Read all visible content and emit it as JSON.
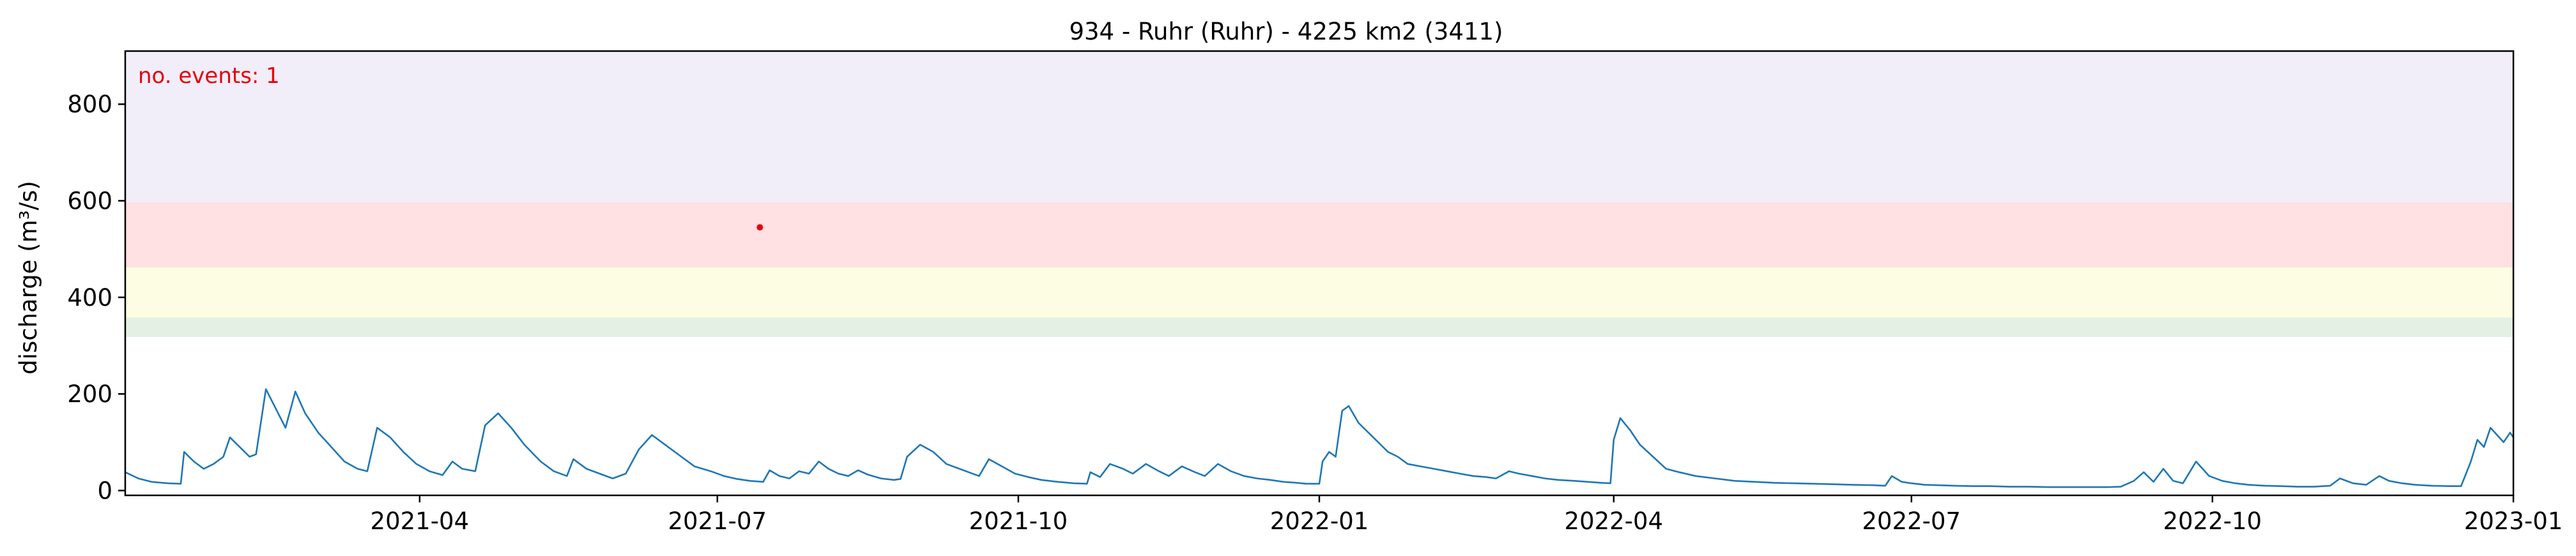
{
  "chart_data": {
    "type": "line",
    "title": "934 - Ruhr (Ruhr) - 4225 km2 (3411)",
    "xlabel": "",
    "ylabel": "discharge (m³/s)",
    "x_range": [
      "2021-01-01",
      "2023-01-01"
    ],
    "ylim": [
      -10,
      910
    ],
    "y_ticks": [
      0,
      200,
      400,
      600,
      800
    ],
    "x_ticks": [
      {
        "date": "2021-04-01",
        "label": "2021-04"
      },
      {
        "date": "2021-07-01",
        "label": "2021-07"
      },
      {
        "date": "2021-10-01",
        "label": "2021-10"
      },
      {
        "date": "2022-01-01",
        "label": "2022-01"
      },
      {
        "date": "2022-04-01",
        "label": "2022-04"
      },
      {
        "date": "2022-07-01",
        "label": "2022-07"
      },
      {
        "date": "2022-10-01",
        "label": "2022-10"
      },
      {
        "date": "2023-01-01",
        "label": "2023-01"
      }
    ],
    "grid": false,
    "threshold_bands": [
      {
        "from": 318,
        "to": 358,
        "color": "#e3f0e3"
      },
      {
        "from": 358,
        "to": 462,
        "color": "#fdfde3"
      },
      {
        "from": 462,
        "to": 597,
        "color": "#ffe0e3"
      },
      {
        "from": 597,
        "to": 910,
        "color": "#f1eef9"
      }
    ],
    "annotation": {
      "text": "no. events: 1",
      "color": "#e8000b",
      "position": "top-left"
    },
    "events": [
      {
        "date": "2021-07-14",
        "value": 545,
        "color": "#e8000b"
      }
    ],
    "series": [
      {
        "color": "#1f77b4",
        "points": [
          [
            "2021-01-01",
            38
          ],
          [
            "2021-01-05",
            25
          ],
          [
            "2021-01-09",
            18
          ],
          [
            "2021-01-14",
            15
          ],
          [
            "2021-01-18",
            14
          ],
          [
            "2021-01-19",
            80
          ],
          [
            "2021-01-22",
            60
          ],
          [
            "2021-01-25",
            45
          ],
          [
            "2021-01-28",
            55
          ],
          [
            "2021-01-31",
            70
          ],
          [
            "2021-02-02",
            110
          ],
          [
            "2021-02-05",
            90
          ],
          [
            "2021-02-08",
            70
          ],
          [
            "2021-02-10",
            75
          ],
          [
            "2021-02-13",
            210
          ],
          [
            "2021-02-16",
            170
          ],
          [
            "2021-02-19",
            130
          ],
          [
            "2021-02-22",
            205
          ],
          [
            "2021-02-25",
            160
          ],
          [
            "2021-03-01",
            120
          ],
          [
            "2021-03-05",
            90
          ],
          [
            "2021-03-09",
            60
          ],
          [
            "2021-03-13",
            45
          ],
          [
            "2021-03-16",
            40
          ],
          [
            "2021-03-19",
            130
          ],
          [
            "2021-03-23",
            110
          ],
          [
            "2021-03-27",
            80
          ],
          [
            "2021-03-31",
            55
          ],
          [
            "2021-04-04",
            40
          ],
          [
            "2021-04-08",
            32
          ],
          [
            "2021-04-11",
            60
          ],
          [
            "2021-04-14",
            45
          ],
          [
            "2021-04-18",
            40
          ],
          [
            "2021-04-21",
            135
          ],
          [
            "2021-04-25",
            160
          ],
          [
            "2021-04-29",
            130
          ],
          [
            "2021-05-03",
            95
          ],
          [
            "2021-05-08",
            60
          ],
          [
            "2021-05-12",
            40
          ],
          [
            "2021-05-16",
            30
          ],
          [
            "2021-05-18",
            65
          ],
          [
            "2021-05-22",
            45
          ],
          [
            "2021-05-26",
            35
          ],
          [
            "2021-05-30",
            25
          ],
          [
            "2021-06-03",
            35
          ],
          [
            "2021-06-07",
            85
          ],
          [
            "2021-06-11",
            115
          ],
          [
            "2021-06-15",
            95
          ],
          [
            "2021-06-20",
            70
          ],
          [
            "2021-06-24",
            50
          ],
          [
            "2021-06-29",
            40
          ],
          [
            "2021-07-03",
            30
          ],
          [
            "2021-07-07",
            24
          ],
          [
            "2021-07-11",
            20
          ],
          [
            "2021-07-15",
            18
          ],
          [
            "2021-07-17",
            42
          ],
          [
            "2021-07-20",
            30
          ],
          [
            "2021-07-23",
            25
          ],
          [
            "2021-07-26",
            40
          ],
          [
            "2021-07-29",
            35
          ],
          [
            "2021-08-01",
            60
          ],
          [
            "2021-08-04",
            45
          ],
          [
            "2021-08-07",
            35
          ],
          [
            "2021-08-10",
            30
          ],
          [
            "2021-08-13",
            42
          ],
          [
            "2021-08-16",
            33
          ],
          [
            "2021-08-20",
            25
          ],
          [
            "2021-08-24",
            22
          ],
          [
            "2021-08-26",
            24
          ],
          [
            "2021-08-28",
            70
          ],
          [
            "2021-09-01",
            95
          ],
          [
            "2021-09-05",
            80
          ],
          [
            "2021-09-09",
            55
          ],
          [
            "2021-09-13",
            45
          ],
          [
            "2021-09-15",
            40
          ],
          [
            "2021-09-19",
            30
          ],
          [
            "2021-09-22",
            65
          ],
          [
            "2021-09-26",
            50
          ],
          [
            "2021-09-30",
            35
          ],
          [
            "2021-10-04",
            28
          ],
          [
            "2021-10-08",
            22
          ],
          [
            "2021-10-13",
            18
          ],
          [
            "2021-10-18",
            15
          ],
          [
            "2021-10-22",
            14
          ],
          [
            "2021-10-23",
            38
          ],
          [
            "2021-10-26",
            28
          ],
          [
            "2021-10-29",
            55
          ],
          [
            "2021-11-02",
            45
          ],
          [
            "2021-11-05",
            35
          ],
          [
            "2021-11-09",
            55
          ],
          [
            "2021-11-13",
            40
          ],
          [
            "2021-11-16",
            30
          ],
          [
            "2021-11-20",
            50
          ],
          [
            "2021-11-24",
            38
          ],
          [
            "2021-11-27",
            30
          ],
          [
            "2021-12-01",
            55
          ],
          [
            "2021-12-05",
            40
          ],
          [
            "2021-12-09",
            30
          ],
          [
            "2021-12-13",
            25
          ],
          [
            "2021-12-17",
            22
          ],
          [
            "2021-12-21",
            18
          ],
          [
            "2021-12-25",
            16
          ],
          [
            "2021-12-28",
            14
          ],
          [
            "2022-01-01",
            14
          ],
          [
            "2022-01-02",
            60
          ],
          [
            "2022-01-04",
            80
          ],
          [
            "2022-01-06",
            70
          ],
          [
            "2022-01-08",
            165
          ],
          [
            "2022-01-10",
            175
          ],
          [
            "2022-01-13",
            140
          ],
          [
            "2022-01-16",
            120
          ],
          [
            "2022-01-19",
            100
          ],
          [
            "2022-01-22",
            80
          ],
          [
            "2022-01-25",
            70
          ],
          [
            "2022-01-28",
            55
          ],
          [
            "2022-02-01",
            50
          ],
          [
            "2022-02-05",
            45
          ],
          [
            "2022-02-09",
            40
          ],
          [
            "2022-02-13",
            35
          ],
          [
            "2022-02-17",
            30
          ],
          [
            "2022-02-21",
            28
          ],
          [
            "2022-02-24",
            25
          ],
          [
            "2022-02-28",
            40
          ],
          [
            "2022-03-03",
            35
          ],
          [
            "2022-03-07",
            30
          ],
          [
            "2022-03-11",
            25
          ],
          [
            "2022-03-15",
            22
          ],
          [
            "2022-03-20",
            20
          ],
          [
            "2022-03-24",
            18
          ],
          [
            "2022-03-28",
            16
          ],
          [
            "2022-03-31",
            15
          ],
          [
            "2022-04-01",
            105
          ],
          [
            "2022-04-03",
            150
          ],
          [
            "2022-04-06",
            125
          ],
          [
            "2022-04-09",
            95
          ],
          [
            "2022-04-13",
            70
          ],
          [
            "2022-04-17",
            45
          ],
          [
            "2022-04-21",
            38
          ],
          [
            "2022-04-26",
            30
          ],
          [
            "2022-05-02",
            25
          ],
          [
            "2022-05-08",
            20
          ],
          [
            "2022-05-14",
            18
          ],
          [
            "2022-05-20",
            16
          ],
          [
            "2022-05-26",
            15
          ],
          [
            "2022-06-01",
            14
          ],
          [
            "2022-06-07",
            13
          ],
          [
            "2022-06-13",
            12
          ],
          [
            "2022-06-19",
            11
          ],
          [
            "2022-06-23",
            10
          ],
          [
            "2022-06-25",
            30
          ],
          [
            "2022-06-28",
            18
          ],
          [
            "2022-07-01",
            15
          ],
          [
            "2022-07-05",
            12
          ],
          [
            "2022-07-09",
            11
          ],
          [
            "2022-07-14",
            10
          ],
          [
            "2022-07-20",
            9
          ],
          [
            "2022-07-25",
            9
          ],
          [
            "2022-07-31",
            8
          ],
          [
            "2022-08-06",
            8
          ],
          [
            "2022-08-12",
            7
          ],
          [
            "2022-08-18",
            7
          ],
          [
            "2022-08-24",
            7
          ],
          [
            "2022-08-30",
            7
          ],
          [
            "2022-09-03",
            8
          ],
          [
            "2022-09-07",
            20
          ],
          [
            "2022-09-10",
            38
          ],
          [
            "2022-09-13",
            18
          ],
          [
            "2022-09-16",
            45
          ],
          [
            "2022-09-19",
            20
          ],
          [
            "2022-09-22",
            15
          ],
          [
            "2022-09-26",
            60
          ],
          [
            "2022-09-30",
            30
          ],
          [
            "2022-10-04",
            20
          ],
          [
            "2022-10-08",
            15
          ],
          [
            "2022-10-12",
            12
          ],
          [
            "2022-10-17",
            10
          ],
          [
            "2022-10-22",
            9
          ],
          [
            "2022-10-27",
            8
          ],
          [
            "2022-11-01",
            8
          ],
          [
            "2022-11-06",
            10
          ],
          [
            "2022-11-09",
            25
          ],
          [
            "2022-11-13",
            15
          ],
          [
            "2022-11-17",
            12
          ],
          [
            "2022-11-21",
            30
          ],
          [
            "2022-11-24",
            20
          ],
          [
            "2022-11-28",
            15
          ],
          [
            "2022-12-02",
            12
          ],
          [
            "2022-12-07",
            10
          ],
          [
            "2022-12-12",
            9
          ],
          [
            "2022-12-16",
            9
          ],
          [
            "2022-12-19",
            60
          ],
          [
            "2022-12-21",
            105
          ],
          [
            "2022-12-23",
            90
          ],
          [
            "2022-12-25",
            130
          ],
          [
            "2022-12-27",
            115
          ],
          [
            "2022-12-29",
            100
          ],
          [
            "2022-12-31",
            120
          ],
          [
            "2023-01-01",
            110
          ]
        ]
      }
    ]
  }
}
